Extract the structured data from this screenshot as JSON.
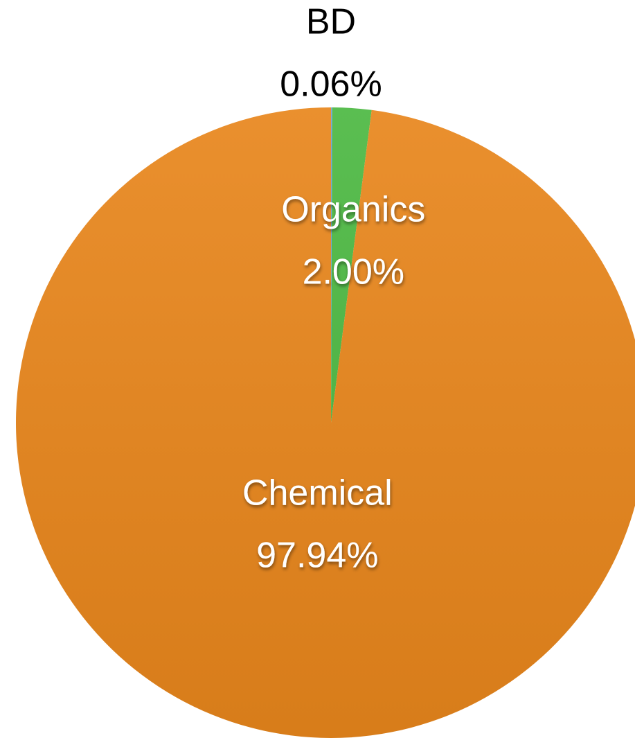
{
  "chart_data": {
    "type": "pie",
    "categories": [
      "BD",
      "Organics",
      "Chemical"
    ],
    "values": [
      0.06,
      2.0,
      97.94
    ],
    "value_labels": [
      "0.06%",
      "2.00%",
      "97.94%"
    ],
    "colors": [
      "#6f9fd8",
      "#4cb842",
      "#e8861c"
    ]
  }
}
